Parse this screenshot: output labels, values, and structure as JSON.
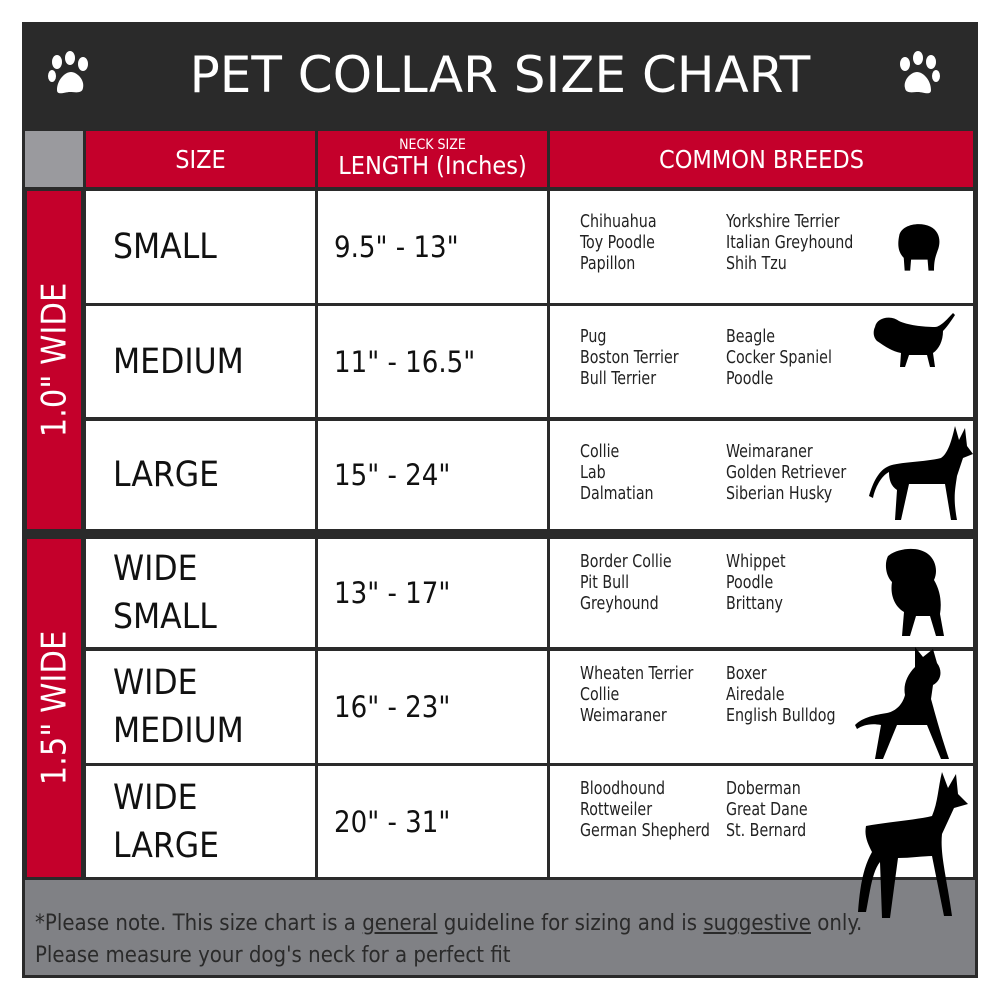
{
  "title": "PET COLLAR SIZE CHART",
  "headers": {
    "size": "SIZE",
    "length_small": "NECK SIZE",
    "length": "LENGTH (Inches)",
    "breeds": "COMMON BREEDS"
  },
  "groups": [
    {
      "label": "1.0\" WIDE"
    },
    {
      "label": "1.5\" WIDE"
    }
  ],
  "rows": [
    {
      "size": "SMALL",
      "length": "9.5\" - 13\"",
      "breeds_a": [
        "Chihuahua",
        "Toy Poodle",
        "Papillon"
      ],
      "breeds_b": [
        "Yorkshire Terrier",
        "Italian Greyhound",
        "Shih Tzu"
      ],
      "icon": "small-dog-silhouette-icon"
    },
    {
      "size": "MEDIUM",
      "length": "11\" - 16.5\"",
      "breeds_a": [
        "Pug",
        "Boston Terrier",
        "Bull Terrier"
      ],
      "breeds_b": [
        "Beagle",
        "Cocker Spaniel",
        "Poodle"
      ],
      "icon": "medium-dog-silhouette-icon"
    },
    {
      "size": "LARGE",
      "length": "15\" - 24\"",
      "breeds_a": [
        "Collie",
        "Lab",
        "Dalmatian"
      ],
      "breeds_b": [
        "Weimaraner",
        "Golden Retriever",
        "Siberian Husky"
      ],
      "icon": "large-dog-silhouette-icon"
    },
    {
      "size": "WIDE",
      "size2": "SMALL",
      "length": "13\" - 17\"",
      "breeds_a": [
        "Border Collie",
        "Pit Bull",
        "Greyhound"
      ],
      "breeds_b": [
        "Whippet",
        "Poodle",
        "Brittany"
      ],
      "icon": "bulldog-silhouette-icon"
    },
    {
      "size": "WIDE",
      "size2": "MEDIUM",
      "length": "16\" - 23\"",
      "breeds_a": [
        "Wheaten Terrier",
        "Collie",
        "Weimaraner"
      ],
      "breeds_b": [
        "Boxer",
        "Airedale",
        "English Bulldog"
      ],
      "icon": "pitbull-silhouette-icon"
    },
    {
      "size": "WIDE",
      "size2": "LARGE",
      "length": "20\" - 31\"",
      "breeds_a": [
        "Bloodhound",
        "Rottweiler",
        "German Shepherd"
      ],
      "breeds_b": [
        "Doberman",
        "Great Dane",
        "St. Bernard"
      ],
      "icon": "doberman-silhouette-icon"
    }
  ],
  "footer": {
    "p1": "*Please note. This size chart is a ",
    "u1": "general",
    "p2": " guideline for sizing and is ",
    "u2": "suggestive",
    "p3": " only.",
    "line2": "Please measure your dog's neck for a perfect fit"
  },
  "colors": {
    "accent": "#c4002b",
    "dark": "#2a2a2a",
    "gray": "#808185"
  }
}
